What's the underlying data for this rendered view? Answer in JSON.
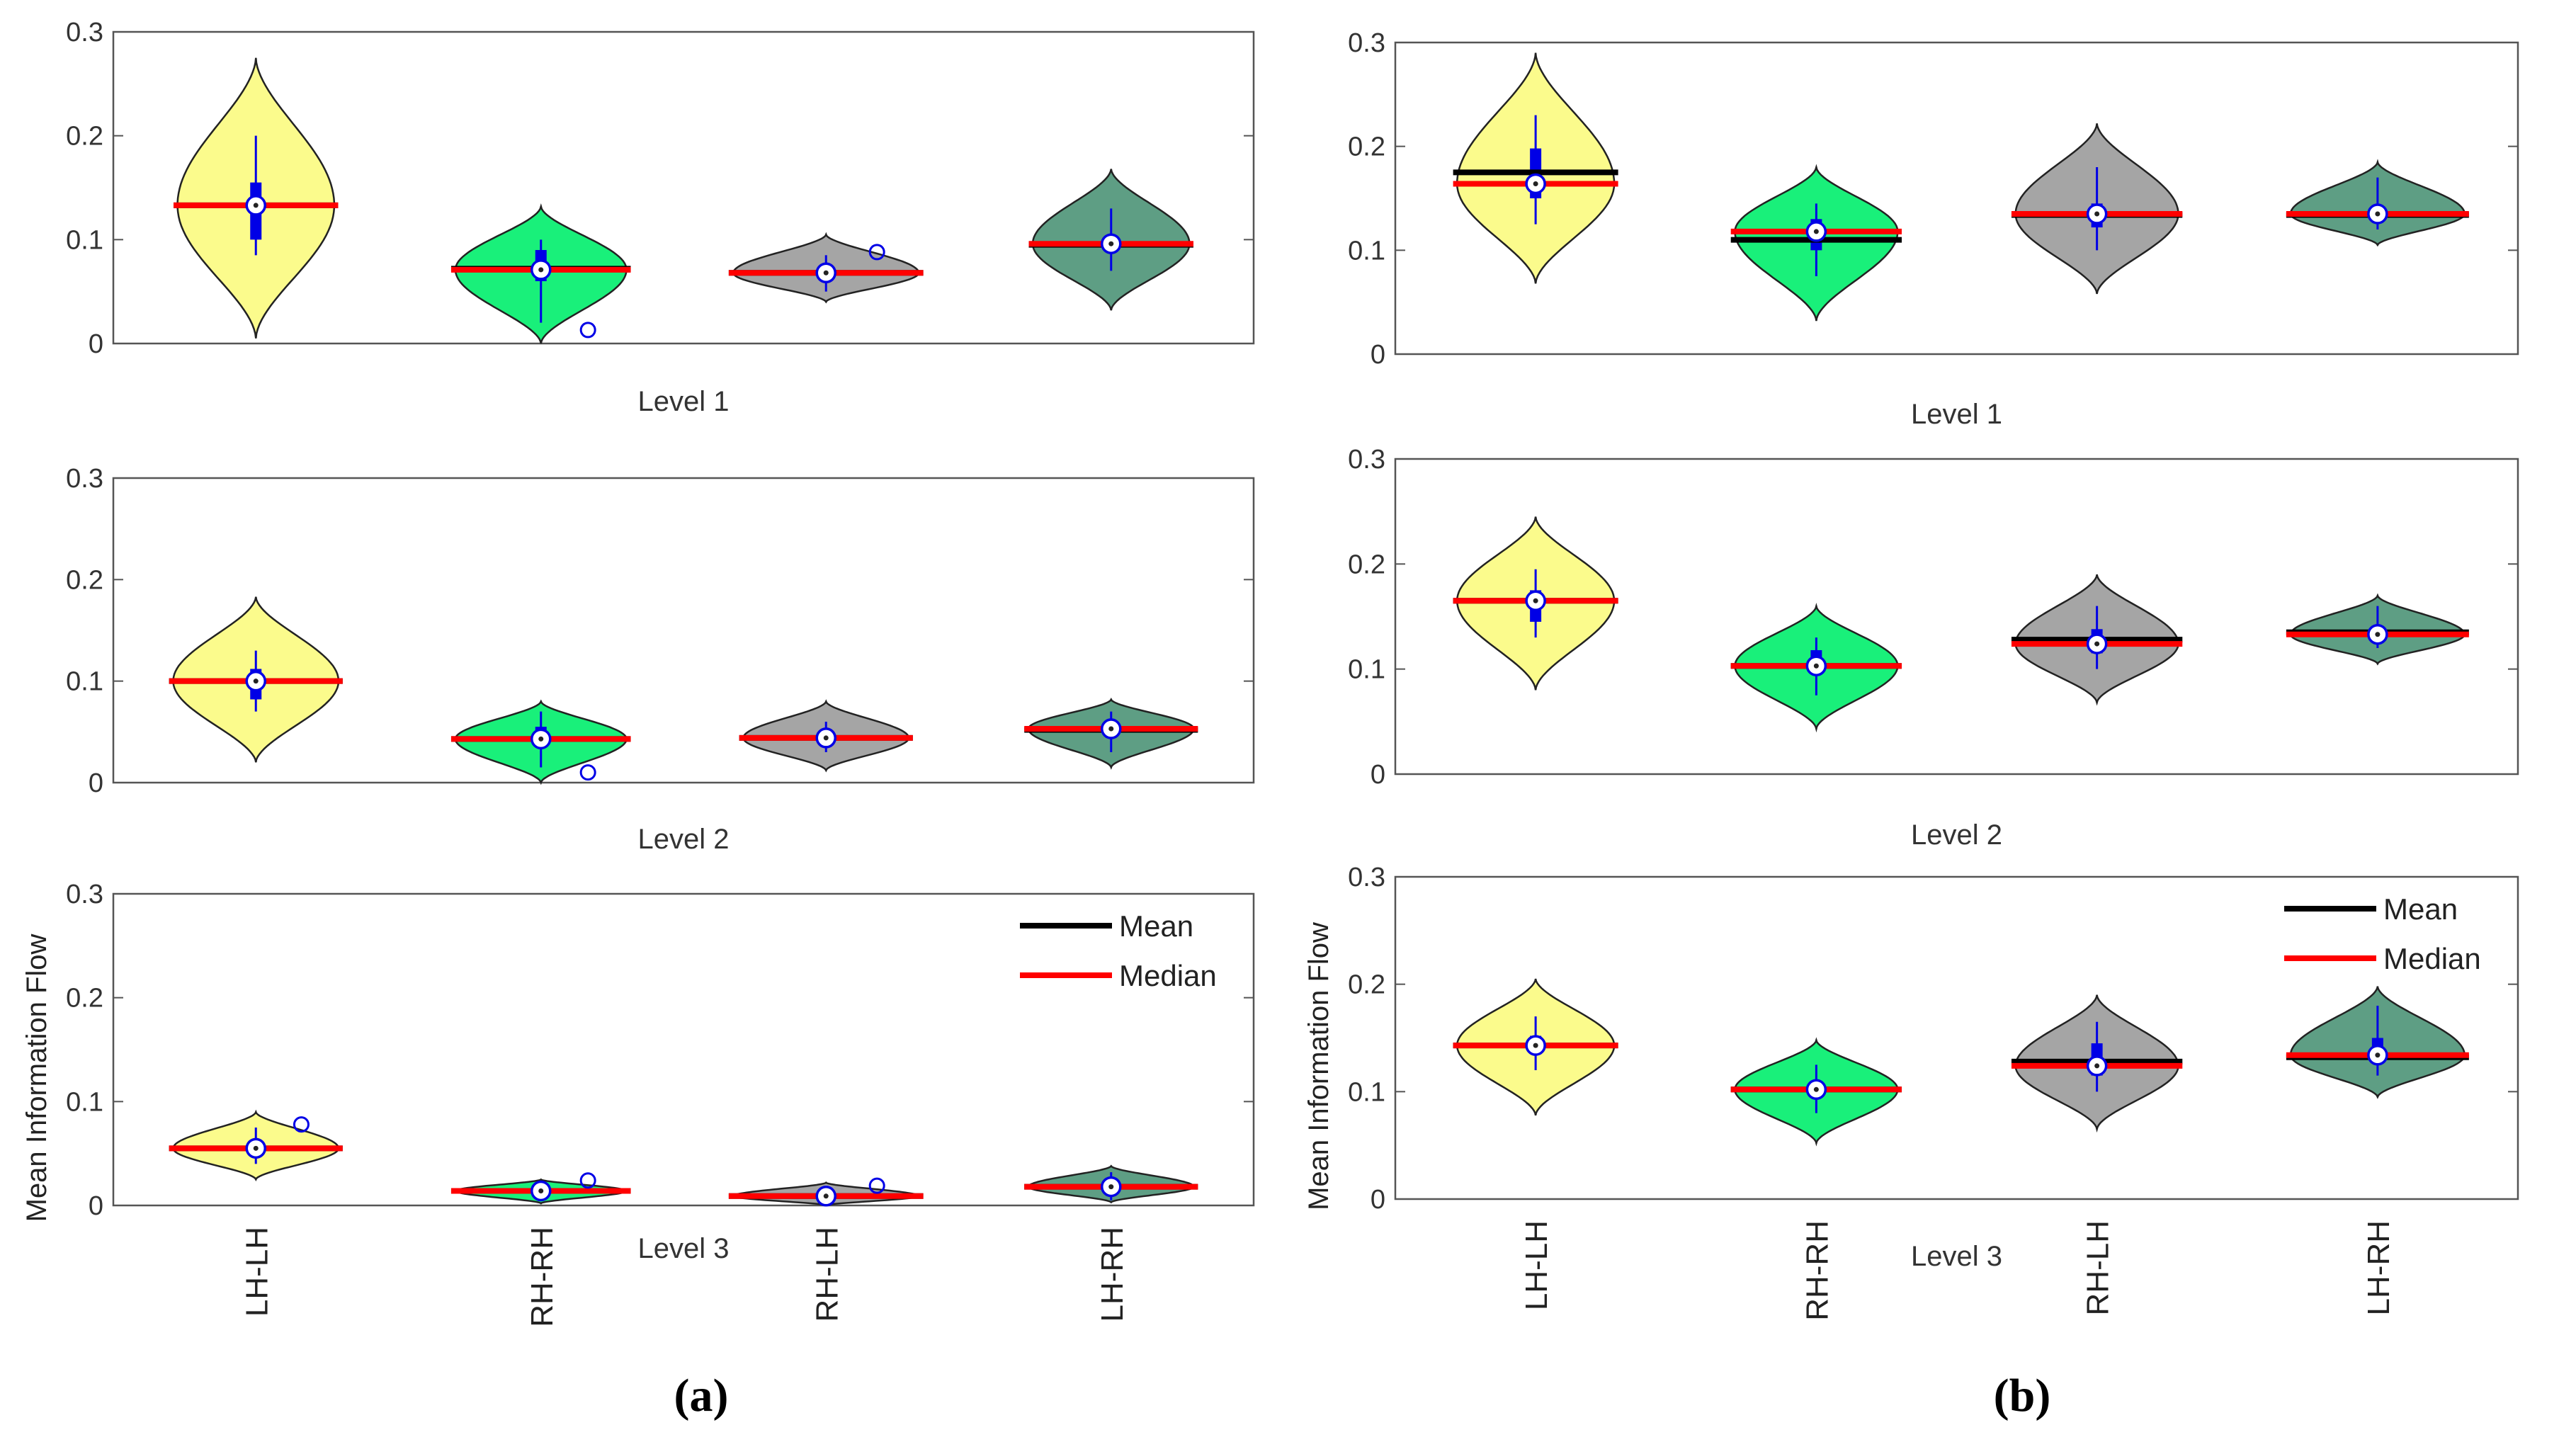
{
  "figure": {
    "panel_labels": [
      "(a)",
      "(b)"
    ],
    "legend": {
      "mean_label": "Mean",
      "median_label": "Median"
    },
    "y_axis_label": "Mean Information Flow"
  },
  "colors": {
    "LH-LH": "#fbfb8c",
    "RH-RH": "#19f07a",
    "RH-LH": "#a5a5a5",
    "LH-RH": "#5e9e84",
    "mean": "#000000",
    "median": "#ff0000",
    "box": "#0000e6"
  },
  "chart_data": [
    {
      "type": "violin",
      "panel": "(a)",
      "level": "Level 1",
      "categories": [
        "LH-LH",
        "RH-RH",
        "RH-LH",
        "LH-RH"
      ],
      "ylim": [
        0,
        0.3
      ],
      "yticks": [
        0,
        0.1,
        0.2,
        0.3
      ],
      "yticklabels": [
        "0",
        "0.1",
        "0.2",
        "0.3"
      ],
      "show_categories": false,
      "show_ylabel": false,
      "show_legend": false,
      "violins": [
        {
          "name": "LH-LH",
          "min": 0.005,
          "max": 0.275,
          "median": 0.133,
          "mean": 0.133,
          "width": 0.55,
          "q1": 0.1,
          "q3": 0.155,
          "whisker_low": 0.085,
          "whisker_high": 0.2,
          "outliers": []
        },
        {
          "name": "RH-RH",
          "min": 0.0,
          "max": 0.132,
          "median": 0.071,
          "mean": 0.072,
          "width": 0.6,
          "q1": 0.06,
          "q3": 0.09,
          "whisker_low": 0.02,
          "whisker_high": 0.1,
          "outliers": [
            0.013
          ]
        },
        {
          "name": "RH-LH",
          "min": 0.04,
          "max": 0.105,
          "median": 0.068,
          "mean": 0.068,
          "width": 0.65,
          "q1": 0.062,
          "q3": 0.074,
          "whisker_low": 0.05,
          "whisker_high": 0.085,
          "outliers": [
            0.088
          ]
        },
        {
          "name": "LH-RH",
          "min": 0.032,
          "max": 0.168,
          "median": 0.096,
          "mean": 0.095,
          "width": 0.55,
          "q1": 0.088,
          "q3": 0.102,
          "whisker_low": 0.07,
          "whisker_high": 0.13,
          "outliers": []
        }
      ]
    },
    {
      "type": "violin",
      "panel": "(a)",
      "level": "Level 2",
      "categories": [
        "LH-LH",
        "RH-RH",
        "RH-LH",
        "LH-RH"
      ],
      "ylim": [
        0,
        0.3
      ],
      "yticks": [
        0,
        0.1,
        0.2,
        0.3
      ],
      "yticklabels": [
        "0",
        "0.1",
        "0.2",
        "0.3"
      ],
      "show_categories": false,
      "show_ylabel": false,
      "show_legend": false,
      "violins": [
        {
          "name": "LH-LH",
          "min": 0.02,
          "max": 0.183,
          "median": 0.1,
          "mean": 0.1,
          "width": 0.58,
          "q1": 0.082,
          "q3": 0.112,
          "whisker_low": 0.07,
          "whisker_high": 0.13,
          "outliers": []
        },
        {
          "name": "RH-RH",
          "min": 0.0,
          "max": 0.08,
          "median": 0.043,
          "mean": 0.043,
          "width": 0.6,
          "q1": 0.035,
          "q3": 0.055,
          "whisker_low": 0.015,
          "whisker_high": 0.07,
          "outliers": [
            0.01
          ]
        },
        {
          "name": "RH-LH",
          "min": 0.012,
          "max": 0.08,
          "median": 0.044,
          "mean": 0.044,
          "width": 0.58,
          "q1": 0.038,
          "q3": 0.05,
          "whisker_low": 0.03,
          "whisker_high": 0.06,
          "outliers": []
        },
        {
          "name": "LH-RH",
          "min": 0.015,
          "max": 0.082,
          "median": 0.053,
          "mean": 0.052,
          "width": 0.58,
          "q1": 0.047,
          "q3": 0.058,
          "whisker_low": 0.03,
          "whisker_high": 0.07,
          "outliers": []
        }
      ]
    },
    {
      "type": "violin",
      "panel": "(a)",
      "level": "Level 3",
      "categories": [
        "LH-LH",
        "RH-RH",
        "RH-LH",
        "LH-RH"
      ],
      "ylim": [
        0,
        0.3
      ],
      "yticks": [
        0,
        0.1,
        0.2,
        0.3
      ],
      "yticklabels": [
        "0",
        "0.1",
        "0.2",
        "0.3"
      ],
      "show_categories": true,
      "show_ylabel": true,
      "show_legend": true,
      "violins": [
        {
          "name": "LH-LH",
          "min": 0.025,
          "max": 0.09,
          "median": 0.055,
          "mean": 0.055,
          "width": 0.58,
          "q1": 0.05,
          "q3": 0.062,
          "whisker_low": 0.04,
          "whisker_high": 0.075,
          "outliers": [
            0.078
          ]
        },
        {
          "name": "RH-RH",
          "min": 0.002,
          "max": 0.025,
          "median": 0.014,
          "mean": 0.014,
          "width": 0.6,
          "q1": 0.01,
          "q3": 0.018,
          "whisker_low": 0.005,
          "whisker_high": 0.022,
          "outliers": [
            0.024
          ]
        },
        {
          "name": "RH-LH",
          "min": 0.0,
          "max": 0.022,
          "median": 0.009,
          "mean": 0.009,
          "width": 0.65,
          "q1": 0.005,
          "q3": 0.012,
          "whisker_low": 0.001,
          "whisker_high": 0.018,
          "outliers": [
            0.019
          ]
        },
        {
          "name": "LH-RH",
          "min": 0.003,
          "max": 0.038,
          "median": 0.018,
          "mean": 0.018,
          "width": 0.58,
          "q1": 0.012,
          "q3": 0.024,
          "whisker_low": 0.005,
          "whisker_high": 0.032,
          "outliers": []
        }
      ]
    },
    {
      "type": "violin",
      "panel": "(b)",
      "level": "Level 1",
      "categories": [
        "LH-LH",
        "RH-RH",
        "RH-LH",
        "LH-RH"
      ],
      "ylim": [
        0,
        0.3
      ],
      "yticks": [
        0,
        0.1,
        0.2,
        0.3
      ],
      "yticklabels": [
        "0",
        "0.1",
        "0.2",
        "0.3"
      ],
      "show_categories": false,
      "show_ylabel": false,
      "show_legend": false,
      "violins": [
        {
          "name": "LH-LH",
          "min": 0.068,
          "max": 0.29,
          "median": 0.164,
          "mean": 0.175,
          "width": 0.56,
          "q1": 0.15,
          "q3": 0.198,
          "whisker_low": 0.125,
          "whisker_high": 0.23,
          "outliers": []
        },
        {
          "name": "RH-RH",
          "min": 0.032,
          "max": 0.18,
          "median": 0.118,
          "mean": 0.11,
          "width": 0.58,
          "q1": 0.1,
          "q3": 0.13,
          "whisker_low": 0.075,
          "whisker_high": 0.145,
          "outliers": []
        },
        {
          "name": "RH-LH",
          "min": 0.058,
          "max": 0.222,
          "median": 0.135,
          "mean": 0.134,
          "width": 0.58,
          "q1": 0.122,
          "q3": 0.145,
          "whisker_low": 0.1,
          "whisker_high": 0.18,
          "outliers": []
        },
        {
          "name": "LH-RH",
          "min": 0.105,
          "max": 0.185,
          "median": 0.135,
          "mean": 0.134,
          "width": 0.62,
          "q1": 0.128,
          "q3": 0.142,
          "whisker_low": 0.12,
          "whisker_high": 0.17,
          "outliers": []
        }
      ]
    },
    {
      "type": "violin",
      "panel": "(b)",
      "level": "Level 2",
      "categories": [
        "LH-LH",
        "RH-RH",
        "RH-LH",
        "LH-RH"
      ],
      "ylim": [
        0,
        0.3
      ],
      "yticks": [
        0,
        0.1,
        0.2,
        0.3
      ],
      "yticklabels": [
        "0",
        "0.1",
        "0.2",
        "0.3"
      ],
      "show_categories": false,
      "show_ylabel": false,
      "show_legend": false,
      "violins": [
        {
          "name": "LH-LH",
          "min": 0.08,
          "max": 0.245,
          "median": 0.165,
          "mean": 0.165,
          "width": 0.56,
          "q1": 0.145,
          "q3": 0.175,
          "whisker_low": 0.13,
          "whisker_high": 0.195,
          "outliers": []
        },
        {
          "name": "RH-RH",
          "min": 0.043,
          "max": 0.16,
          "median": 0.103,
          "mean": 0.103,
          "width": 0.58,
          "q1": 0.095,
          "q3": 0.118,
          "whisker_low": 0.075,
          "whisker_high": 0.13,
          "outliers": []
        },
        {
          "name": "RH-LH",
          "min": 0.068,
          "max": 0.19,
          "median": 0.124,
          "mean": 0.128,
          "width": 0.58,
          "q1": 0.115,
          "q3": 0.138,
          "whisker_low": 0.1,
          "whisker_high": 0.16,
          "outliers": []
        },
        {
          "name": "LH-RH",
          "min": 0.105,
          "max": 0.17,
          "median": 0.133,
          "mean": 0.135,
          "width": 0.62,
          "q1": 0.128,
          "q3": 0.14,
          "whisker_low": 0.12,
          "whisker_high": 0.16,
          "outliers": []
        }
      ]
    },
    {
      "type": "violin",
      "panel": "(b)",
      "level": "Level 3",
      "categories": [
        "LH-LH",
        "RH-RH",
        "RH-LH",
        "LH-RH"
      ],
      "ylim": [
        0,
        0.3
      ],
      "yticks": [
        0,
        0.1,
        0.2,
        0.3
      ],
      "yticklabels": [
        "0",
        "0.1",
        "0.2",
        "0.3"
      ],
      "show_categories": true,
      "show_ylabel": true,
      "show_legend": true,
      "violins": [
        {
          "name": "LH-LH",
          "min": 0.078,
          "max": 0.205,
          "median": 0.143,
          "mean": 0.143,
          "width": 0.56,
          "q1": 0.135,
          "q3": 0.152,
          "whisker_low": 0.12,
          "whisker_high": 0.17,
          "outliers": []
        },
        {
          "name": "RH-RH",
          "min": 0.052,
          "max": 0.148,
          "median": 0.102,
          "mean": 0.102,
          "width": 0.58,
          "q1": 0.095,
          "q3": 0.108,
          "whisker_low": 0.08,
          "whisker_high": 0.125,
          "outliers": []
        },
        {
          "name": "RH-LH",
          "min": 0.065,
          "max": 0.19,
          "median": 0.124,
          "mean": 0.128,
          "width": 0.58,
          "q1": 0.115,
          "q3": 0.145,
          "whisker_low": 0.1,
          "whisker_high": 0.165,
          "outliers": []
        },
        {
          "name": "LH-RH",
          "min": 0.095,
          "max": 0.198,
          "median": 0.134,
          "mean": 0.132,
          "width": 0.62,
          "q1": 0.128,
          "q3": 0.15,
          "whisker_low": 0.115,
          "whisker_high": 0.18,
          "outliers": []
        }
      ]
    }
  ]
}
